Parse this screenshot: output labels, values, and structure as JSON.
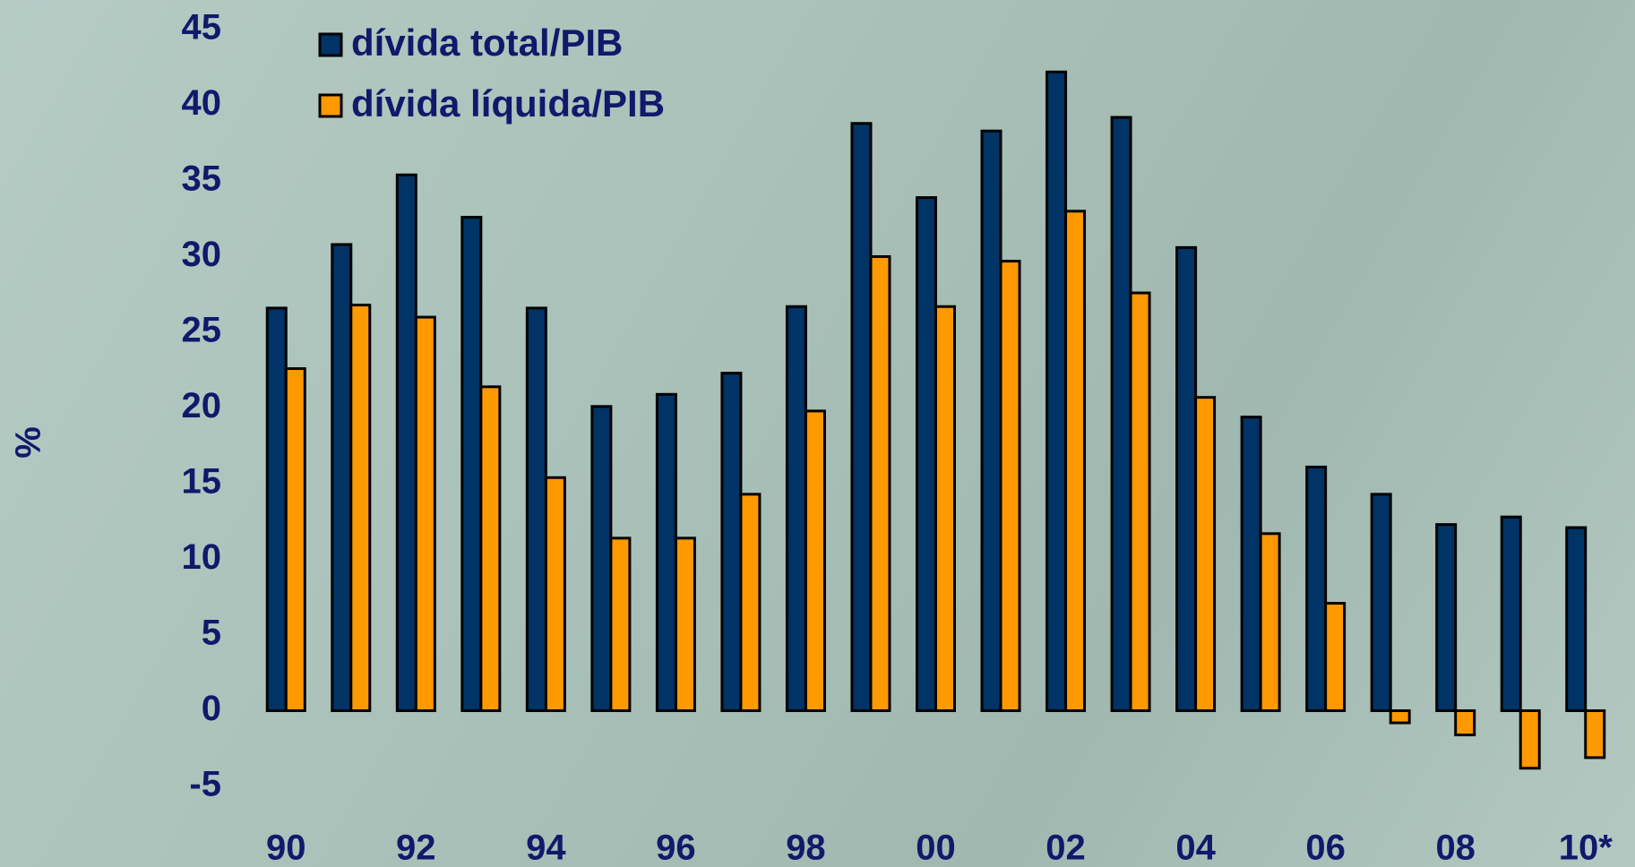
{
  "chart_data": {
    "type": "bar",
    "y_label": "%",
    "categories": [
      "90",
      null,
      "92",
      null,
      "94",
      null,
      "96",
      null,
      "98",
      null,
      "00",
      null,
      "02",
      null,
      "04",
      null,
      "06",
      null,
      "08",
      null,
      "10*"
    ],
    "series": [
      {
        "name": "dívida total/PIB",
        "color": "#003366",
        "values": [
          26.6,
          30.8,
          35.4,
          32.6,
          26.6,
          20.1,
          20.9,
          22.3,
          26.7,
          38.8,
          33.9,
          38.3,
          42.2,
          39.2,
          30.6,
          19.4,
          16.1,
          14.3,
          12.3,
          12.8,
          12.1
        ]
      },
      {
        "name": "dívida líquida/PIB",
        "color": "#ff9900",
        "values": [
          22.6,
          26.8,
          26.0,
          21.4,
          15.4,
          11.4,
          11.4,
          14.3,
          19.8,
          30.0,
          26.7,
          29.7,
          33.0,
          27.6,
          20.7,
          11.7,
          7.1,
          -0.8,
          -1.6,
          -3.8,
          -3.1
        ]
      }
    ],
    "ylim": [
      -5,
      45
    ],
    "yticks": [
      -5,
      0,
      5,
      10,
      15,
      20,
      25,
      30,
      35,
      40,
      45
    ],
    "legend": "upper left"
  }
}
